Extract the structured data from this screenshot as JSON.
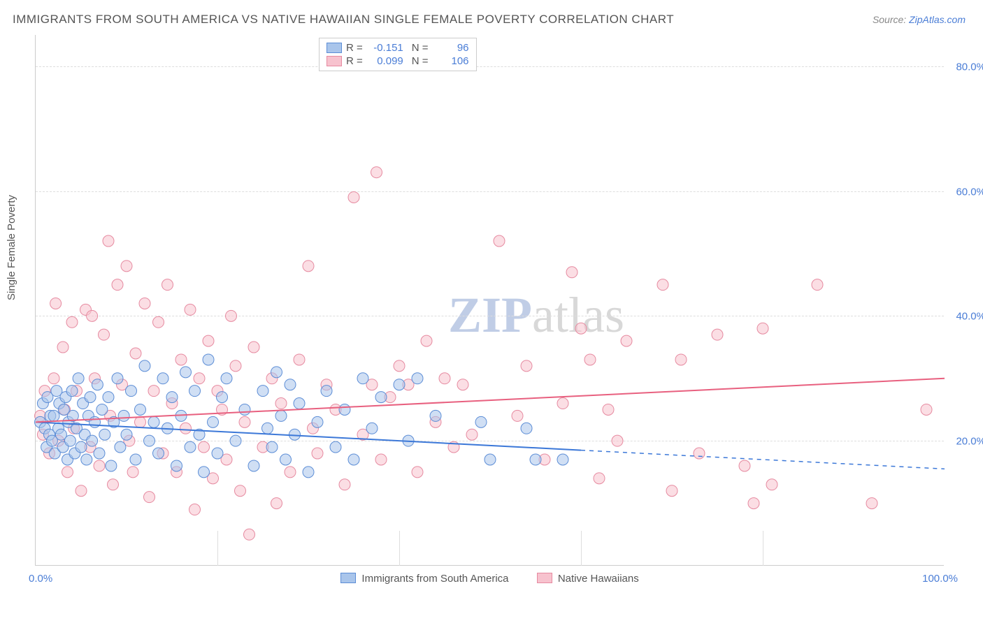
{
  "title": "IMMIGRANTS FROM SOUTH AMERICA VS NATIVE HAWAIIAN SINGLE FEMALE POVERTY CORRELATION CHART",
  "source": {
    "prefix": "Source: ",
    "name": "ZipAtlas.com"
  },
  "y_axis_label": "Single Female Poverty",
  "watermark": {
    "bold": "ZIP",
    "rest": "atlas"
  },
  "chart": {
    "type": "scatter",
    "xlim": [
      0,
      100
    ],
    "ylim": [
      0,
      85
    ],
    "x_ticks": [
      0,
      20,
      40,
      60,
      80,
      100
    ],
    "x_tick_labels": {
      "min": "0.0%",
      "max": "100.0%"
    },
    "y_ticks": [
      20,
      40,
      60,
      80
    ],
    "y_tick_labels": [
      "20.0%",
      "40.0%",
      "60.0%",
      "80.0%"
    ],
    "grid_color": "#dddddd",
    "background_color": "#ffffff",
    "axis_color": "#cccccc",
    "marker_radius": 8,
    "series": {
      "blue": {
        "label": "Immigrants from South America",
        "fill": "#a9c5eb",
        "stroke": "#5c8dd6",
        "R": "-0.151",
        "N": "96",
        "trend": {
          "y_at_x0": 23.0,
          "y_at_x60": 18.5,
          "solid_until_x": 60,
          "y_at_x100": 15.5
        },
        "points": [
          [
            0.5,
            23
          ],
          [
            0.8,
            26
          ],
          [
            1.0,
            22
          ],
          [
            1.2,
            19
          ],
          [
            1.3,
            27
          ],
          [
            1.5,
            21
          ],
          [
            1.6,
            24
          ],
          [
            1.8,
            20
          ],
          [
            2.0,
            24
          ],
          [
            2.1,
            18
          ],
          [
            2.3,
            28
          ],
          [
            2.5,
            22
          ],
          [
            2.6,
            26
          ],
          [
            2.8,
            21
          ],
          [
            3.0,
            19
          ],
          [
            3.1,
            25
          ],
          [
            3.3,
            27
          ],
          [
            3.5,
            17
          ],
          [
            3.6,
            23
          ],
          [
            3.8,
            20
          ],
          [
            4.0,
            28
          ],
          [
            4.1,
            24
          ],
          [
            4.3,
            18
          ],
          [
            4.5,
            22
          ],
          [
            4.7,
            30
          ],
          [
            5.0,
            19
          ],
          [
            5.2,
            26
          ],
          [
            5.4,
            21
          ],
          [
            5.6,
            17
          ],
          [
            5.8,
            24
          ],
          [
            6.0,
            27
          ],
          [
            6.2,
            20
          ],
          [
            6.5,
            23
          ],
          [
            6.8,
            29
          ],
          [
            7.0,
            18
          ],
          [
            7.3,
            25
          ],
          [
            7.6,
            21
          ],
          [
            8.0,
            27
          ],
          [
            8.3,
            16
          ],
          [
            8.6,
            23
          ],
          [
            9.0,
            30
          ],
          [
            9.3,
            19
          ],
          [
            9.7,
            24
          ],
          [
            10.0,
            21
          ],
          [
            10.5,
            28
          ],
          [
            11.0,
            17
          ],
          [
            11.5,
            25
          ],
          [
            12.0,
            32
          ],
          [
            12.5,
            20
          ],
          [
            13.0,
            23
          ],
          [
            13.5,
            18
          ],
          [
            14.0,
            30
          ],
          [
            14.5,
            22
          ],
          [
            15.0,
            27
          ],
          [
            15.5,
            16
          ],
          [
            16.0,
            24
          ],
          [
            16.5,
            31
          ],
          [
            17.0,
            19
          ],
          [
            17.5,
            28
          ],
          [
            18.0,
            21
          ],
          [
            18.5,
            15
          ],
          [
            19.0,
            33
          ],
          [
            19.5,
            23
          ],
          [
            20.0,
            18
          ],
          [
            20.5,
            27
          ],
          [
            21.0,
            30
          ],
          [
            22.0,
            20
          ],
          [
            23.0,
            25
          ],
          [
            24.0,
            16
          ],
          [
            25.0,
            28
          ],
          [
            25.5,
            22
          ],
          [
            26.0,
            19
          ],
          [
            26.5,
            31
          ],
          [
            27.0,
            24
          ],
          [
            27.5,
            17
          ],
          [
            28.0,
            29
          ],
          [
            28.5,
            21
          ],
          [
            29.0,
            26
          ],
          [
            30.0,
            15
          ],
          [
            31.0,
            23
          ],
          [
            32.0,
            28
          ],
          [
            33.0,
            19
          ],
          [
            34.0,
            25
          ],
          [
            35.0,
            17
          ],
          [
            36.0,
            30
          ],
          [
            37.0,
            22
          ],
          [
            38.0,
            27
          ],
          [
            40.0,
            29
          ],
          [
            41.0,
            20
          ],
          [
            42.0,
            30
          ],
          [
            44.0,
            24
          ],
          [
            49.0,
            23
          ],
          [
            50.0,
            17
          ],
          [
            54.0,
            22
          ],
          [
            55.0,
            17
          ],
          [
            58.0,
            17
          ]
        ]
      },
      "pink": {
        "label": "Native Hawaiians",
        "fill": "#f7c2ce",
        "stroke": "#e68aa0",
        "R": "0.099",
        "N": "106",
        "trend": {
          "y_at_x0": 23.0,
          "y_at_x100": 30.0
        },
        "points": [
          [
            0.5,
            24
          ],
          [
            0.8,
            21
          ],
          [
            1.0,
            28
          ],
          [
            1.5,
            18
          ],
          [
            2.0,
            30
          ],
          [
            2.2,
            42
          ],
          [
            2.5,
            20
          ],
          [
            3.0,
            35
          ],
          [
            3.2,
            25
          ],
          [
            3.5,
            15
          ],
          [
            4.0,
            39
          ],
          [
            4.2,
            22
          ],
          [
            4.5,
            28
          ],
          [
            5.0,
            12
          ],
          [
            5.5,
            41
          ],
          [
            6.0,
            19
          ],
          [
            6.2,
            40
          ],
          [
            6.5,
            30
          ],
          [
            7.0,
            16
          ],
          [
            7.5,
            37
          ],
          [
            8.0,
            52
          ],
          [
            8.2,
            24
          ],
          [
            8.5,
            13
          ],
          [
            9.0,
            45
          ],
          [
            9.5,
            29
          ],
          [
            10.0,
            48
          ],
          [
            10.3,
            20
          ],
          [
            10.7,
            15
          ],
          [
            11.0,
            34
          ],
          [
            11.5,
            23
          ],
          [
            12.0,
            42
          ],
          [
            12.5,
            11
          ],
          [
            13.0,
            28
          ],
          [
            13.5,
            39
          ],
          [
            14.0,
            18
          ],
          [
            14.5,
            45
          ],
          [
            15.0,
            26
          ],
          [
            15.5,
            15
          ],
          [
            16.0,
            33
          ],
          [
            16.5,
            22
          ],
          [
            17.0,
            41
          ],
          [
            17.5,
            9
          ],
          [
            18.0,
            30
          ],
          [
            18.5,
            19
          ],
          [
            19.0,
            36
          ],
          [
            19.5,
            14
          ],
          [
            20.0,
            28
          ],
          [
            20.5,
            25
          ],
          [
            21.0,
            17
          ],
          [
            21.5,
            40
          ],
          [
            22.0,
            32
          ],
          [
            22.5,
            12
          ],
          [
            23.0,
            23
          ],
          [
            23.5,
            5
          ],
          [
            24.0,
            35
          ],
          [
            25.0,
            19
          ],
          [
            26.0,
            30
          ],
          [
            26.5,
            10
          ],
          [
            27.0,
            26
          ],
          [
            28.0,
            15
          ],
          [
            29.0,
            33
          ],
          [
            30.0,
            48
          ],
          [
            30.5,
            22
          ],
          [
            31.0,
            18
          ],
          [
            32.0,
            29
          ],
          [
            33.0,
            25
          ],
          [
            34.0,
            13
          ],
          [
            35.0,
            59
          ],
          [
            36.0,
            21
          ],
          [
            37.0,
            29
          ],
          [
            37.5,
            63
          ],
          [
            38.0,
            17
          ],
          [
            39.0,
            27
          ],
          [
            40.0,
            32
          ],
          [
            41.0,
            29
          ],
          [
            42.0,
            15
          ],
          [
            43.0,
            36
          ],
          [
            44.0,
            23
          ],
          [
            45.0,
            30
          ],
          [
            46.0,
            19
          ],
          [
            47.0,
            29
          ],
          [
            48.0,
            21
          ],
          [
            51.0,
            52
          ],
          [
            53.0,
            24
          ],
          [
            54.0,
            32
          ],
          [
            56.0,
            17
          ],
          [
            58.0,
            26
          ],
          [
            59.0,
            47
          ],
          [
            60.0,
            38
          ],
          [
            61.0,
            33
          ],
          [
            62.0,
            14
          ],
          [
            63.0,
            25
          ],
          [
            64.0,
            20
          ],
          [
            65.0,
            36
          ],
          [
            69.0,
            45
          ],
          [
            70.0,
            12
          ],
          [
            71.0,
            33
          ],
          [
            73.0,
            18
          ],
          [
            75.0,
            37
          ],
          [
            78.0,
            16
          ],
          [
            79.0,
            10
          ],
          [
            80.0,
            38
          ],
          [
            81.0,
            13
          ],
          [
            86.0,
            45
          ],
          [
            92.0,
            10
          ],
          [
            98.0,
            25
          ]
        ]
      }
    }
  }
}
